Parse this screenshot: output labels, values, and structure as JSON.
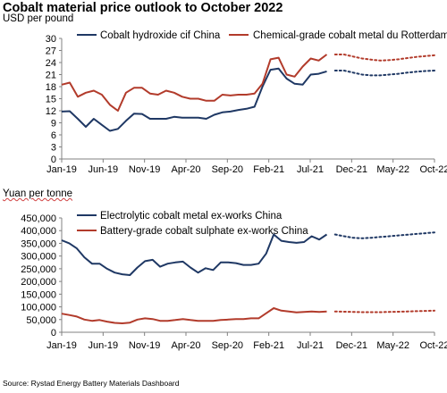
{
  "title": "Cobalt material price outlook to October 2022",
  "source": "Source: Rystad Energy Battery Materials Dashboard",
  "colors": {
    "navy": "#1f3864",
    "red": "#b23b2b",
    "axis": "#808080"
  },
  "chart_data": [
    {
      "type": "line",
      "unit_label": "USD per pound",
      "x_tick_labels": [
        "Jan-19",
        "Jun-19",
        "Nov-19",
        "Apr-20",
        "Sep-20",
        "Feb-21",
        "Jul-21",
        "Dec-21",
        "May-22",
        "Oct-22"
      ],
      "y_tick_labels": [
        "0",
        "3",
        "6",
        "9",
        "12",
        "15",
        "18",
        "21",
        "24",
        "27",
        "30"
      ],
      "ylim": [
        0,
        30
      ],
      "series": [
        {
          "name": "Cobalt hydroxide cif China",
          "color": "#1f3864",
          "actual": [
            11.8,
            11.9,
            10.0,
            8.0,
            10.0,
            8.5,
            7.0,
            7.5,
            9.5,
            11.3,
            11.2,
            10.0,
            10.0,
            10.0,
            10.5,
            10.3,
            10.3,
            10.3,
            10.0,
            11.0,
            11.6,
            11.8,
            12.2,
            12.5,
            13.0,
            18.0,
            22.2,
            22.5,
            20.0,
            18.7,
            18.5,
            21.0,
            21.2,
            21.8
          ],
          "forecast": [
            22.0,
            22.0,
            21.5,
            21.0,
            20.8,
            20.8,
            21.0,
            21.2,
            21.5,
            21.7,
            21.9,
            22.0
          ]
        },
        {
          "name": "Chemical-grade cobalt metal du Rotterdam",
          "color": "#b23b2b",
          "actual": [
            18.5,
            19.0,
            15.5,
            16.5,
            17.0,
            16.0,
            13.5,
            12.0,
            16.5,
            17.7,
            17.7,
            16.3,
            16.0,
            17.0,
            16.5,
            15.5,
            15.0,
            15.0,
            14.5,
            14.5,
            16.0,
            15.8,
            16.0,
            16.0,
            16.3,
            18.7,
            24.8,
            25.2,
            21.0,
            20.5,
            23.0,
            25.0,
            24.5,
            26.0
          ],
          "forecast": [
            26.0,
            26.0,
            25.5,
            25.0,
            24.7,
            24.5,
            24.6,
            24.8,
            25.1,
            25.4,
            25.6,
            25.8
          ]
        }
      ]
    },
    {
      "type": "line",
      "unit_label": "Yuan per tonne",
      "x_tick_labels": [
        "Jan-19",
        "Jun-19",
        "Nov-19",
        "Apr-20",
        "Sep-20",
        "Feb-21",
        "Jul-21",
        "Dec-21",
        "May-22",
        "Oct-22"
      ],
      "y_tick_labels": [
        "0",
        "50,000",
        "100,000",
        "150,000",
        "200,000",
        "250,000",
        "300,000",
        "350,000",
        "400,000",
        "450,000"
      ],
      "ylim": [
        0,
        450000
      ],
      "series": [
        {
          "name": "Electrolytic cobalt metal ex-works China",
          "color": "#1f3864",
          "actual": [
            362000,
            350000,
            330000,
            295000,
            270000,
            270000,
            250000,
            235000,
            228000,
            225000,
            255000,
            280000,
            285000,
            258000,
            270000,
            275000,
            278000,
            255000,
            235000,
            252000,
            245000,
            275000,
            275000,
            272000,
            265000,
            265000,
            270000,
            310000,
            385000,
            360000,
            355000,
            352000,
            355000,
            378000,
            365000,
            385000
          ],
          "forecast": [
            385000,
            378000,
            372000,
            370000,
            372000,
            375000,
            378000,
            381000,
            384000,
            387000,
            390000,
            393000
          ]
        },
        {
          "name": "Battery-grade cobalt sulphate ex-works China",
          "color": "#b23b2b",
          "actual": [
            73000,
            68000,
            62000,
            50000,
            45000,
            48000,
            42000,
            37000,
            35000,
            38000,
            50000,
            55000,
            52000,
            45000,
            45000,
            48000,
            52000,
            48000,
            45000,
            45000,
            45000,
            48000,
            50000,
            52000,
            52000,
            55000,
            55000,
            75000,
            95000,
            85000,
            82000,
            78000,
            80000,
            82000,
            80000,
            82000
          ],
          "forecast": [
            82000,
            81000,
            80000,
            79000,
            79000,
            79000,
            80000,
            81000,
            82000,
            83000,
            84000,
            85000
          ]
        }
      ]
    }
  ]
}
